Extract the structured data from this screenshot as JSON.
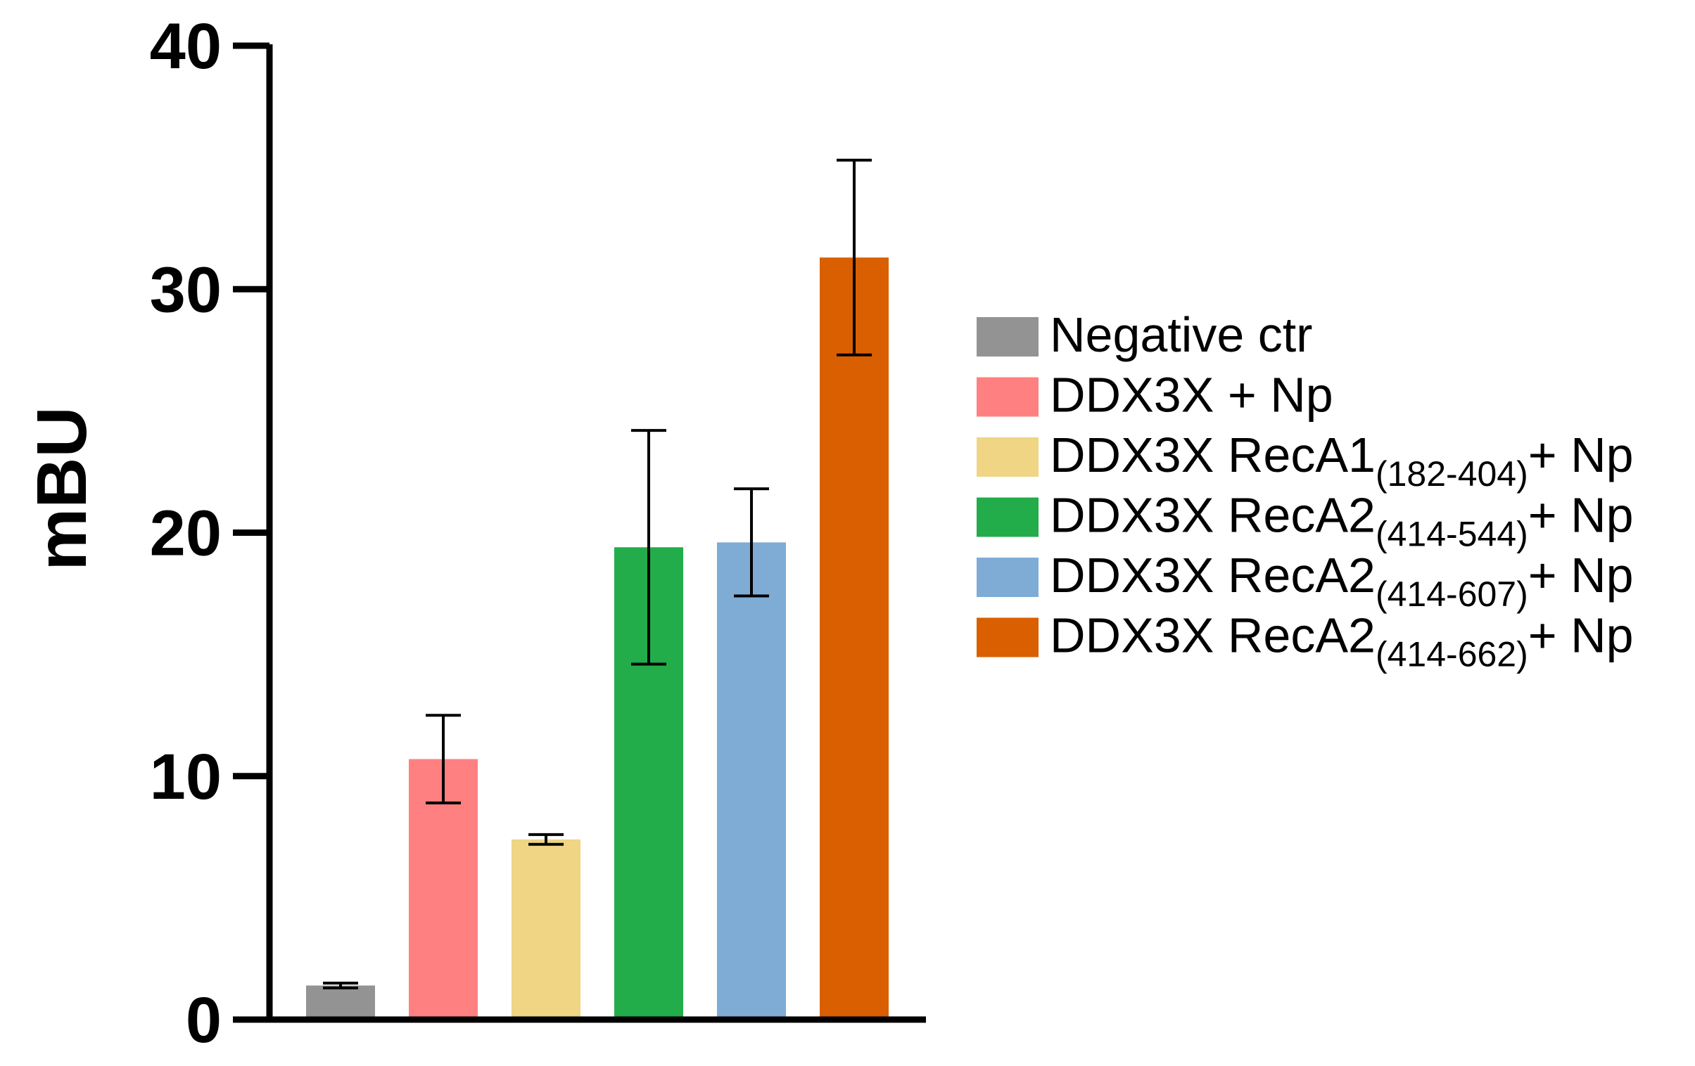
{
  "chart_data": {
    "type": "bar",
    "categories": [
      "Negative ctr",
      "DDX3X + Np",
      "DDX3X RecA1(182-404)+ Np",
      "DDX3X RecA2(414-544)+ Np",
      "DDX3X RecA2(414-607)+ Np",
      "DDX3X RecA2(414-662)+ Np"
    ],
    "values": [
      1.4,
      10.7,
      7.4,
      19.4,
      19.6,
      31.3
    ],
    "errors": [
      0.1,
      1.8,
      0.2,
      4.8,
      2.2,
      4.0
    ],
    "colors": [
      "#939393",
      "#ff8080",
      "#efd584",
      "#22ad4a",
      "#7eacd5",
      "#d95f00"
    ],
    "title": "",
    "xlabel": "",
    "ylabel": "mBU",
    "ylim": [
      0,
      40
    ],
    "yticks": [
      "0",
      "10",
      "20",
      "30",
      "40"
    ],
    "legend": {
      "position": "right",
      "entries": [
        {
          "main": "Negative ctr",
          "sub": "",
          "suffix": ""
        },
        {
          "main": "DDX3X + Np",
          "sub": "",
          "suffix": ""
        },
        {
          "main": "DDX3X RecA1",
          "sub": "(182-404)",
          "suffix": "+ Np"
        },
        {
          "main": "DDX3X RecA2",
          "sub": "(414-544)",
          "suffix": "+ Np"
        },
        {
          "main": "DDX3X RecA2",
          "sub": "(414-607)",
          "suffix": "+ Np"
        },
        {
          "main": "DDX3X RecA2",
          "sub": "(414-662)",
          "suffix": "+ Np"
        }
      ]
    },
    "grid": false
  }
}
